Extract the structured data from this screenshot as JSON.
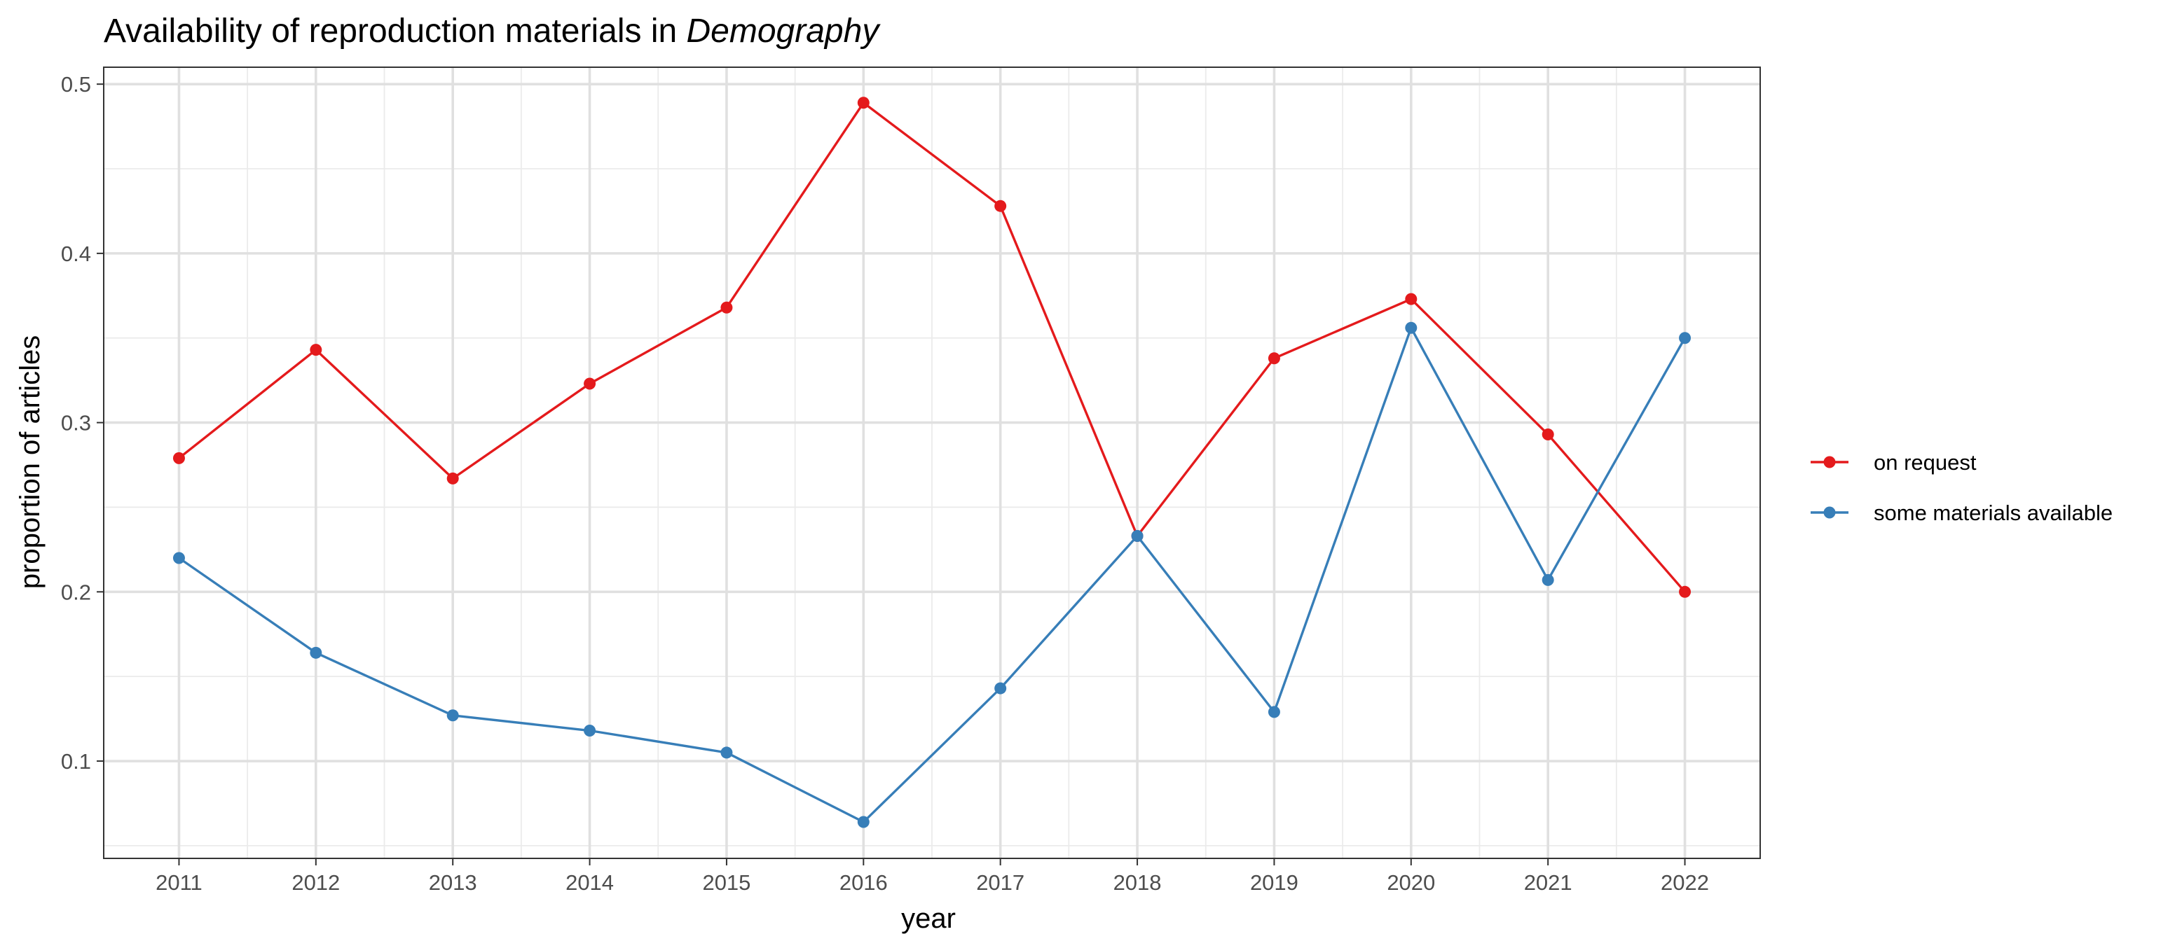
{
  "chart_data": {
    "type": "line",
    "title": "Availability of reproduction materials in ",
    "title_italic": "Demography",
    "xlabel": "year",
    "ylabel": "proportion of articles",
    "categories": [
      "2011",
      "2012",
      "2013",
      "2014",
      "2015",
      "2016",
      "2017",
      "2018",
      "2019",
      "2020",
      "2021",
      "2022"
    ],
    "x": [
      2011,
      2012,
      2013,
      2014,
      2015,
      2016,
      2017,
      2018,
      2019,
      2020,
      2021,
      2022
    ],
    "xlim": [
      2010.45,
      2022.55
    ],
    "ylim": [
      0.0425,
      0.51
    ],
    "yticks": [
      0.1,
      0.2,
      0.3,
      0.4,
      0.5
    ],
    "ytick_labels": [
      "0.1",
      "0.2",
      "0.3",
      "0.4",
      "0.5"
    ],
    "grid": true,
    "legend_position": "right",
    "series": [
      {
        "name": "on request",
        "color": "#E41A1C",
        "values": [
          0.279,
          0.343,
          0.267,
          0.323,
          0.368,
          0.489,
          0.428,
          0.233,
          0.338,
          0.373,
          0.293,
          0.2
        ]
      },
      {
        "name": "some materials available",
        "color": "#377EB8",
        "values": [
          0.22,
          0.164,
          0.127,
          0.118,
          0.105,
          0.064,
          0.143,
          0.233,
          0.129,
          0.356,
          0.207,
          0.35
        ]
      }
    ]
  }
}
